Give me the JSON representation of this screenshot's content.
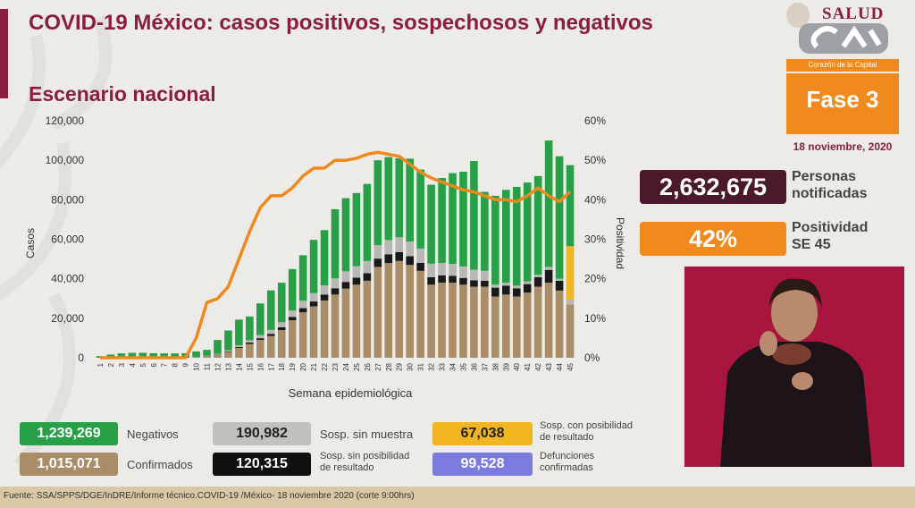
{
  "header": {
    "title": "COVID-19 México: casos positivos, sospechosos y negativos",
    "subtitle": "Escenario nacional"
  },
  "logo": {
    "salud_text": "SALUD"
  },
  "phase": {
    "caption": "Corazón de la Capital",
    "label": "Fase 3",
    "date": "18 noviembre, 2020"
  },
  "kpis": {
    "notificadas_value": "2,632,675",
    "notificadas_label_1": "Personas",
    "notificadas_label_2": "notificadas",
    "positividad_value": "42%",
    "positividad_label_1": "Positividad",
    "positividad_label_2": "SE 45"
  },
  "legend": {
    "negativos_value": "1,239,269",
    "negativos_label": "Negativos",
    "sin_muestra_value": "190,982",
    "sin_muestra_label": "Sosp. sin muestra",
    "con_posibilidad_value": "67,038",
    "con_posibilidad_label_1": "Sosp. con posibilidad",
    "con_posibilidad_label_2": "de resultado",
    "confirmados_value": "1,015,071",
    "confirmados_label": "Confirmados",
    "sin_posibilidad_value": "120,315",
    "sin_posibilidad_label_1": "Sosp. sin posibilidad",
    "sin_posibilidad_label_2": "de resultado",
    "defunciones_value": "99,528",
    "defunciones_label_1": "Defunciones",
    "defunciones_label_2": "confirmadas"
  },
  "footer": {
    "source": "Fuente: SSA/SPPS/DGE/InDRE/Informe técnico.COVID-19 /México- 18 noviembre 2020 (corte 9:00hrs)"
  },
  "colors": {
    "negativos": "#27a047",
    "confirmados": "#a98c68",
    "sin_muestra": "#b9b7b4",
    "sin_posibilidad": "#1a1a1a",
    "con_posibilidad": "#f0b521",
    "defunciones": "#7b7bdf",
    "positividad_line": "#f0891d",
    "brand": "#8b1e3f",
    "accent": "#f08a1c"
  },
  "chart_data": {
    "type": "bar",
    "stacked": true,
    "xlabel": "Semana epidemiológica",
    "ylabel": "Casos",
    "y2label": "Positividad",
    "ylim": [
      0,
      120000
    ],
    "y2lim": [
      0,
      60
    ],
    "yticks": [
      "0",
      "20,000",
      "40,000",
      "60,000",
      "80,000",
      "100,000",
      "120,000"
    ],
    "y2ticks": [
      "0%",
      "10%",
      "20%",
      "30%",
      "40%",
      "50%",
      "60%"
    ],
    "grid": false,
    "categories": [
      "1",
      "2",
      "3",
      "4",
      "5",
      "6",
      "7",
      "8",
      "9",
      "10",
      "11",
      "12",
      "13",
      "14",
      "15",
      "16",
      "17",
      "18",
      "19",
      "20",
      "21",
      "22",
      "23",
      "24",
      "25",
      "26",
      "27",
      "28",
      "29",
      "30",
      "31",
      "32",
      "33",
      "34",
      "35",
      "36",
      "37",
      "38",
      "39",
      "40",
      "41",
      "42",
      "43",
      "44",
      "45"
    ],
    "series": [
      {
        "key": "confirmados",
        "values": [
          0,
          0,
          0,
          0,
          0,
          0,
          0,
          0,
          0,
          100,
          700,
          1500,
          3000,
          5000,
          7000,
          9000,
          11000,
          14000,
          19000,
          23000,
          26000,
          29000,
          32000,
          35000,
          37000,
          39000,
          46000,
          48000,
          49000,
          47000,
          44000,
          37000,
          38000,
          38000,
          37000,
          36000,
          36000,
          31000,
          32000,
          31000,
          33000,
          36000,
          38000,
          34000,
          27000
        ]
      },
      {
        "key": "sin_posibilidad",
        "values": [
          0,
          0,
          0,
          0,
          0,
          0,
          0,
          0,
          0,
          0,
          100,
          200,
          300,
          500,
          700,
          900,
          1100,
          1400,
          1700,
          2100,
          2500,
          3000,
          3200,
          3400,
          3600,
          3800,
          4200,
          4400,
          4500,
          4400,
          4100,
          3800,
          3700,
          3500,
          3400,
          3200,
          3000,
          4500,
          4500,
          4200,
          4300,
          4800,
          6500,
          5000,
          0
        ]
      },
      {
        "key": "sin_muestra",
        "values": [
          0,
          0,
          0,
          0,
          0,
          0,
          0,
          0,
          0,
          100,
          200,
          300,
          500,
          800,
          1200,
          1600,
          2000,
          2600,
          3200,
          3800,
          4200,
          4600,
          5000,
          5400,
          5800,
          6200,
          6800,
          7200,
          7500,
          7400,
          7200,
          6800,
          6300,
          6000,
          5800,
          5400,
          5000,
          1500,
          1500,
          1300,
          1400,
          1200,
          1500,
          1000,
          2500
        ]
      },
      {
        "key": "con_posibilidad",
        "values": [
          0,
          0,
          0,
          0,
          0,
          0,
          0,
          0,
          0,
          0,
          0,
          0,
          0,
          0,
          0,
          0,
          0,
          0,
          0,
          0,
          0,
          0,
          0,
          0,
          0,
          0,
          0,
          0,
          0,
          0,
          0,
          0,
          0,
          0,
          0,
          0,
          0,
          0,
          0,
          0,
          0,
          0,
          0,
          0,
          27000
        ]
      },
      {
        "key": "negativos",
        "values": [
          800,
          1600,
          2200,
          2500,
          2500,
          2300,
          2200,
          2200,
          2300,
          3000,
          3000,
          7000,
          10000,
          13000,
          12000,
          16000,
          20000,
          20000,
          21000,
          23000,
          27000,
          28000,
          35000,
          37000,
          37000,
          39000,
          43000,
          42000,
          40000,
          42000,
          40000,
          40000,
          43000,
          46000,
          48000,
          55000,
          40000,
          45000,
          47000,
          50000,
          50000,
          50000,
          64000,
          62000,
          41000
        ]
      }
    ],
    "positividad_pct": [
      0,
      0,
      0,
      0,
      0,
      0,
      0,
      0,
      0,
      5,
      14,
      15,
      18,
      25,
      32,
      38,
      41,
      41,
      43,
      46,
      48,
      48,
      50,
      50,
      50.5,
      51.5,
      52,
      51.5,
      51,
      49,
      47,
      45.5,
      44.5,
      43.5,
      42.5,
      42,
      41,
      40,
      40,
      39.5,
      41,
      43,
      41,
      39.5,
      42
    ]
  }
}
